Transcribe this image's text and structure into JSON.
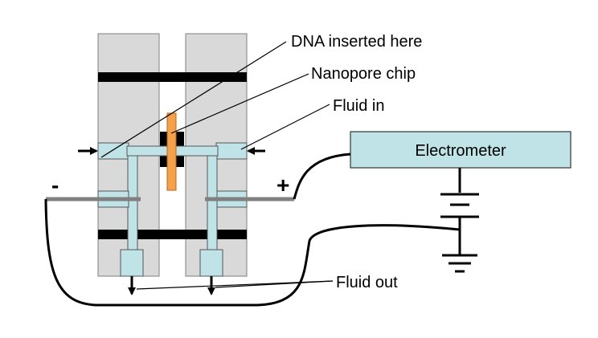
{
  "labels": {
    "dna": "DNA inserted here",
    "chip": "Nanopore chip",
    "fluid_in": "Fluid in",
    "electrometer": "Electrometer",
    "fluid_out": "Fluid out",
    "minus": "-",
    "plus": "+"
  },
  "colors": {
    "block": "#d9d9d9",
    "channel": "#bfe3e6",
    "chip": "#f5a04a",
    "electrode": "#808080",
    "ink": "#000000"
  }
}
